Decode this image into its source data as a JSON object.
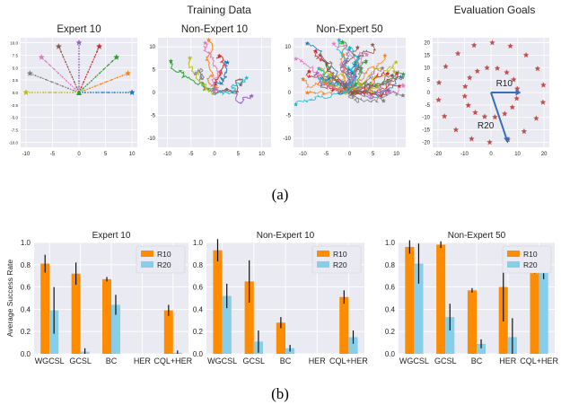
{
  "figure": {
    "header_training": "Training Data",
    "header_eval": "Evaluation Goals",
    "caption_a": "(a)",
    "caption_b": "(b)"
  },
  "panels_a": [
    {
      "title": "Expert 10",
      "xticks": [
        "-10",
        "-5",
        "0",
        "5",
        "10"
      ],
      "yticks": [
        "10.0",
        "7.5",
        "5.0",
        "2.5",
        "0.0",
        "-2.5",
        "-5.0",
        "-7.5",
        "-10.0"
      ]
    },
    {
      "title": "Non-Expert 10",
      "xticks": [
        "-10",
        "-5",
        "0",
        "5",
        "10"
      ],
      "yticks": [
        "10",
        "5",
        "0",
        "-5",
        "-10"
      ]
    },
    {
      "title": "Non-Expert 50",
      "xticks": [
        "-10",
        "-5",
        "0",
        "5",
        "10"
      ],
      "yticks": [
        "10",
        "5",
        "0",
        "-5",
        "-10"
      ]
    },
    {
      "title": "",
      "xticks": [
        "-20",
        "-10",
        "0",
        "10",
        "20"
      ],
      "yticks": [
        "20",
        "15",
        "10",
        "5",
        "0",
        "-5",
        "-10",
        "-15",
        "-20"
      ],
      "arrow_labels": [
        "R10",
        "R20"
      ]
    }
  ],
  "chart_data": [
    {
      "type": "bar",
      "title": "Expert 10",
      "ylabel": "Average Success Rate",
      "ylim": [
        0,
        1.0
      ],
      "yticks": [
        "0.0",
        "0.2",
        "0.4",
        "0.6",
        "0.8",
        "1.0"
      ],
      "categories": [
        "WGCSL",
        "GCSL",
        "BC",
        "HER",
        "CQL+HER"
      ],
      "series": [
        {
          "name": "R10",
          "color": "#ff8c00",
          "values": [
            0.81,
            0.72,
            0.67,
            0.0,
            0.39
          ],
          "errors": [
            0.08,
            0.1,
            0.02,
            0.0,
            0.05
          ]
        },
        {
          "name": "R20",
          "color": "#87ceeb",
          "values": [
            0.39,
            0.02,
            0.44,
            0.0,
            0.01
          ],
          "errors": [
            0.21,
            0.03,
            0.09,
            0.0,
            0.02
          ]
        }
      ],
      "legend": "top-right",
      "grid": true
    },
    {
      "type": "bar",
      "title": "Non-Expert 10",
      "ylim": [
        0,
        1.0
      ],
      "yticks": [
        "0.0",
        "0.2",
        "0.4",
        "0.6",
        "0.8",
        "1.0"
      ],
      "categories": [
        "WGCSL",
        "GCSL",
        "BC",
        "HER",
        "CQL+HER"
      ],
      "series": [
        {
          "name": "R10",
          "color": "#ff8c00",
          "values": [
            0.93,
            0.65,
            0.28,
            0.0,
            0.51
          ],
          "errors": [
            0.1,
            0.19,
            0.05,
            0.0,
            0.06
          ]
        },
        {
          "name": "R20",
          "color": "#87ceeb",
          "values": [
            0.52,
            0.11,
            0.05,
            0.0,
            0.15
          ],
          "errors": [
            0.11,
            0.1,
            0.03,
            0.0,
            0.06
          ]
        }
      ],
      "legend": "top-right",
      "grid": true
    },
    {
      "type": "bar",
      "title": "Non-Expert 50",
      "ylim": [
        0,
        1.0
      ],
      "yticks": [
        "0.0",
        "0.2",
        "0.4",
        "0.6",
        "0.8",
        "1.0"
      ],
      "categories": [
        "WGCSL",
        "GCSL",
        "BC",
        "HER",
        "CQL+HER"
      ],
      "series": [
        {
          "name": "R10",
          "color": "#ff8c00",
          "values": [
            0.96,
            0.98,
            0.57,
            0.6,
            0.84
          ],
          "errors": [
            0.06,
            0.03,
            0.02,
            0.31,
            0.12
          ]
        },
        {
          "name": "R20",
          "color": "#87ceeb",
          "values": [
            0.81,
            0.33,
            0.09,
            0.15,
            0.75
          ],
          "errors": [
            0.18,
            0.12,
            0.04,
            0.17,
            0.08
          ]
        }
      ],
      "legend": "top-right",
      "grid": true
    }
  ]
}
